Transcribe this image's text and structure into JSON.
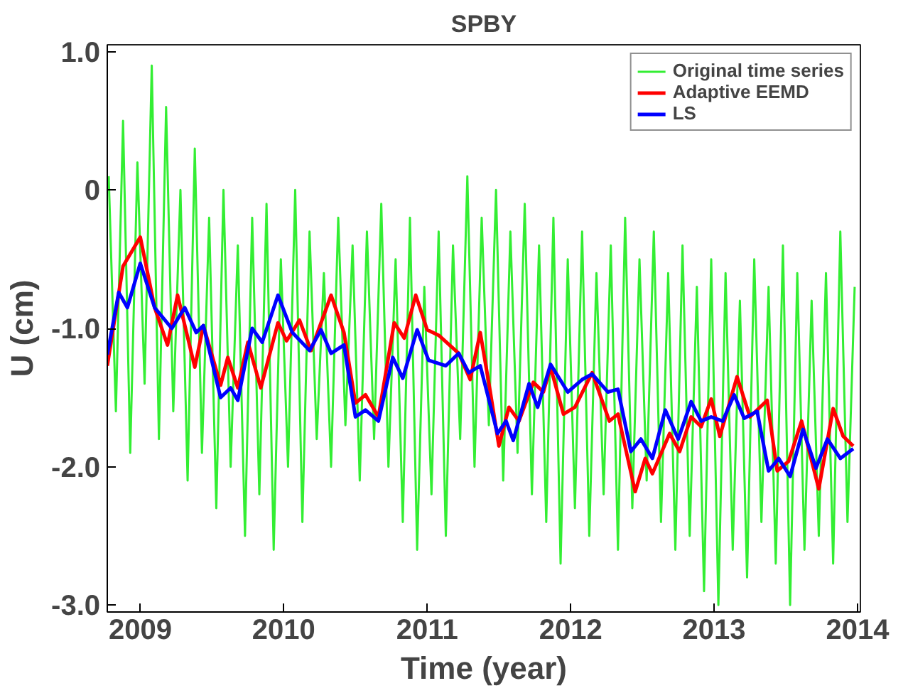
{
  "chart_data": {
    "type": "line",
    "title": "SPBY",
    "xlabel": "Time (year)",
    "ylabel": "U (cm)",
    "xlim": [
      2008.77,
      2014.02
    ],
    "ylim": [
      -3.05,
      1.05
    ],
    "xticks": [
      2009,
      2010,
      2011,
      2012,
      2013,
      2014
    ],
    "yticks": [
      {
        "value": -3,
        "label": "-3.0"
      },
      {
        "value": -2,
        "label": "-2.0"
      },
      {
        "value": -1,
        "label": "-1.0"
      },
      0,
      {
        "value": 1,
        "label": "1.0"
      }
    ],
    "grid": false,
    "legend": "top right",
    "marker": "none",
    "line_style": "solid",
    "series": [
      {
        "name": "Original time series",
        "color": "#33ee33",
        "x": [
          2008.78,
          2008.83,
          2008.88,
          2008.93,
          2008.98,
          2009.03,
          2009.08,
          2009.13,
          2009.18,
          2009.23,
          2009.28,
          2009.33,
          2009.38,
          2009.43,
          2009.48,
          2009.53,
          2009.58,
          2009.63,
          2009.68,
          2009.73,
          2009.78,
          2009.83,
          2009.88,
          2009.93,
          2009.98,
          2010.03,
          2010.08,
          2010.13,
          2010.18,
          2010.23,
          2010.28,
          2010.33,
          2010.38,
          2010.43,
          2010.48,
          2010.53,
          2010.58,
          2010.63,
          2010.68,
          2010.73,
          2010.78,
          2010.83,
          2010.88,
          2010.93,
          2010.98,
          2011.03,
          2011.08,
          2011.13,
          2011.18,
          2011.23,
          2011.28,
          2011.33,
          2011.38,
          2011.43,
          2011.48,
          2011.53,
          2011.58,
          2011.63,
          2011.68,
          2011.73,
          2011.78,
          2011.83,
          2011.88,
          2011.93,
          2011.98,
          2012.03,
          2012.08,
          2012.13,
          2012.18,
          2012.23,
          2012.28,
          2012.33,
          2012.38,
          2012.43,
          2012.48,
          2012.53,
          2012.58,
          2012.63,
          2012.68,
          2012.73,
          2012.78,
          2012.83,
          2012.88,
          2012.93,
          2012.98,
          2013.03,
          2013.08,
          2013.13,
          2013.18,
          2013.23,
          2013.28,
          2013.33,
          2013.38,
          2013.43,
          2013.48,
          2013.53,
          2013.58,
          2013.63,
          2013.68,
          2013.73,
          2013.78,
          2013.83,
          2013.88,
          2013.93,
          2013.98
        ],
        "values": [
          0.1,
          -1.6,
          0.5,
          -1.9,
          0.2,
          -1.4,
          0.9,
          -1.8,
          0.6,
          -1.6,
          0.0,
          -2.1,
          0.3,
          -1.9,
          -0.2,
          -2.3,
          0.0,
          -2.0,
          -0.4,
          -2.5,
          -0.2,
          -2.2,
          -0.1,
          -2.6,
          -0.5,
          -2.0,
          0.0,
          -2.4,
          -0.3,
          -1.8,
          -0.6,
          -2.0,
          -0.2,
          -1.7,
          -0.4,
          -2.1,
          -0.3,
          -1.8,
          -0.1,
          -2.0,
          -0.5,
          -2.4,
          -0.2,
          -2.6,
          -0.7,
          -2.2,
          -0.3,
          -2.5,
          -0.4,
          -1.8,
          0.1,
          -2.0,
          -0.2,
          -1.7,
          0.0,
          -2.1,
          -0.3,
          -1.9,
          -0.1,
          -2.2,
          -0.4,
          -2.4,
          -0.2,
          -2.7,
          -0.5,
          -2.3,
          -0.3,
          -2.5,
          -0.6,
          -2.2,
          -0.4,
          -2.6,
          -0.2,
          -2.3,
          -0.5,
          -2.1,
          -0.3,
          -2.4,
          -0.6,
          -2.6,
          -0.4,
          -2.5,
          -0.7,
          -2.9,
          -0.5,
          -3.0,
          -0.6,
          -2.6,
          -0.8,
          -2.8,
          -0.5,
          -2.4,
          -0.7,
          -2.7,
          -0.4,
          -3.0,
          -0.6,
          -2.6,
          -0.8,
          -2.5,
          -0.6,
          -2.7,
          -0.3,
          -2.4,
          -0.7
        ]
      },
      {
        "name": "Adaptive EEMD",
        "color": "#ff0000",
        "x": [
          2008.77,
          2008.88,
          2009.0,
          2009.1,
          2009.19,
          2009.26,
          2009.38,
          2009.44,
          2009.56,
          2009.61,
          2009.68,
          2009.75,
          2009.84,
          2009.96,
          2010.02,
          2010.11,
          2010.19,
          2010.33,
          2010.42,
          2010.5,
          2010.57,
          2010.66,
          2010.77,
          2010.84,
          2010.92,
          2011.0,
          2011.08,
          2011.22,
          2011.3,
          2011.37,
          2011.44,
          2011.5,
          2011.57,
          2011.64,
          2011.74,
          2011.81,
          2011.86,
          2011.95,
          2012.03,
          2012.15,
          2012.27,
          2012.33,
          2012.45,
          2012.52,
          2012.57,
          2012.69,
          2012.76,
          2012.84,
          2012.91,
          2012.98,
          2013.04,
          2013.16,
          2013.25,
          2013.37,
          2013.44,
          2013.52,
          2013.61,
          2013.73,
          2013.83,
          2013.9,
          2013.97
        ],
        "values": [
          -1.27,
          -0.55,
          -0.34,
          -0.85,
          -1.12,
          -0.76,
          -1.28,
          -0.98,
          -1.41,
          -1.21,
          -1.43,
          -1.1,
          -1.43,
          -0.96,
          -1.09,
          -0.94,
          -1.16,
          -0.76,
          -1.03,
          -1.54,
          -1.48,
          -1.64,
          -0.96,
          -1.07,
          -0.76,
          -1.01,
          -1.05,
          -1.18,
          -1.37,
          -1.03,
          -1.46,
          -1.85,
          -1.57,
          -1.67,
          -1.39,
          -1.46,
          -1.28,
          -1.62,
          -1.57,
          -1.32,
          -1.67,
          -1.62,
          -2.18,
          -1.94,
          -2.05,
          -1.76,
          -1.89,
          -1.64,
          -1.71,
          -1.51,
          -1.78,
          -1.35,
          -1.64,
          -1.52,
          -2.03,
          -1.96,
          -1.67,
          -2.16,
          -1.58,
          -1.78,
          -1.85
        ]
      },
      {
        "name": "LS",
        "color": "#0000ff",
        "x": [
          2008.77,
          2008.85,
          2008.91,
          2009.0,
          2009.1,
          2009.22,
          2009.31,
          2009.39,
          2009.44,
          2009.56,
          2009.63,
          2009.68,
          2009.78,
          2009.85,
          2009.96,
          2010.06,
          2010.18,
          2010.26,
          2010.33,
          2010.42,
          2010.5,
          2010.57,
          2010.66,
          2010.76,
          2010.83,
          2010.93,
          2011.01,
          2011.13,
          2011.22,
          2011.29,
          2011.37,
          2011.49,
          2011.55,
          2011.6,
          2011.71,
          2011.77,
          2011.86,
          2011.98,
          2012.08,
          2012.15,
          2012.26,
          2012.33,
          2012.42,
          2012.49,
          2012.57,
          2012.66,
          2012.75,
          2012.84,
          2012.91,
          2012.98,
          2013.06,
          2013.14,
          2013.21,
          2013.3,
          2013.38,
          2013.45,
          2013.53,
          2013.62,
          2013.71,
          2013.79,
          2013.88,
          2013.97
        ],
        "values": [
          -1.19,
          -0.74,
          -0.85,
          -0.53,
          -0.85,
          -1.0,
          -0.85,
          -1.03,
          -0.98,
          -1.5,
          -1.43,
          -1.52,
          -1.0,
          -1.1,
          -0.76,
          -1.03,
          -1.16,
          -1.01,
          -1.18,
          -1.12,
          -1.64,
          -1.59,
          -1.67,
          -1.21,
          -1.36,
          -1.01,
          -1.23,
          -1.27,
          -1.18,
          -1.32,
          -1.27,
          -1.76,
          -1.67,
          -1.81,
          -1.4,
          -1.57,
          -1.26,
          -1.46,
          -1.37,
          -1.33,
          -1.46,
          -1.44,
          -1.89,
          -1.8,
          -1.94,
          -1.59,
          -1.8,
          -1.53,
          -1.67,
          -1.64,
          -1.67,
          -1.48,
          -1.65,
          -1.6,
          -2.03,
          -1.94,
          -2.07,
          -1.73,
          -2.01,
          -1.8,
          -1.94,
          -1.87
        ]
      }
    ]
  }
}
